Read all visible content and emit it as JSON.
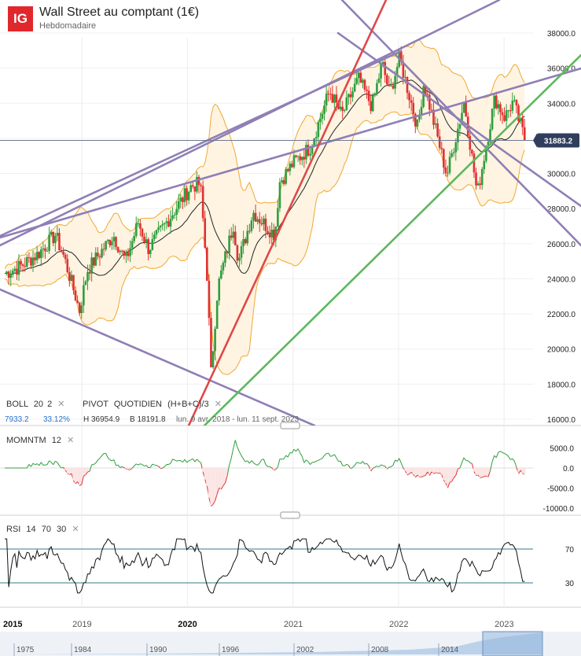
{
  "header": {
    "logo": "IG",
    "title": "Wall Street au comptant (1€)",
    "subtitle": "Hebdomadaire"
  },
  "main_panel": {
    "indicator_boll": {
      "name": "BOLL",
      "p1": "20",
      "p2": "2"
    },
    "indicator_pivot": {
      "name": "PIVOT",
      "p1": "QUOTIDIEN",
      "p2": "(H+B+C)/3"
    },
    "stats": {
      "width": "7933.2",
      "pct": "33.12%",
      "high": "H 36954.9",
      "low": "B 18191.8",
      "range": "lun. 9 avr. 2018 - lun. 11 sept. 2023"
    },
    "last_price": "31883.2"
  },
  "momentum_panel": {
    "name": "MOMNTM",
    "p1": "12"
  },
  "rsi_panel": {
    "name": "RSI",
    "p1": "14",
    "p2": "70",
    "p3": "30"
  },
  "navigator": {
    "years": [
      "1975",
      "1984",
      "1990",
      "1996",
      "2002",
      "2008",
      "2014"
    ]
  },
  "colors": {
    "up": "#2e9e3e",
    "down": "#e03131",
    "band": "#f0a830",
    "trend_purple": "#8f7fb5",
    "trend_red": "#e04848",
    "trend_green": "#5cb85c",
    "price_tag": "#2f3e5c"
  },
  "chart_data": [
    {
      "type": "candlestick",
      "title": "Wall Street au comptant (1€)",
      "y_ticks": [
        16000,
        18000,
        20000,
        22000,
        24000,
        26000,
        28000,
        30000,
        32000,
        34000,
        36000,
        38000
      ],
      "ylim": [
        15500,
        39500
      ],
      "x_ticks": [
        "2015",
        "2019",
        "2020",
        "2021",
        "2022",
        "2023"
      ],
      "last_value": 31883.2,
      "close_path": [
        [
          "2018-04-09",
          24300
        ],
        [
          "2018-06-01",
          24700
        ],
        [
          "2018-08-01",
          25400
        ],
        [
          "2018-10-01",
          26500
        ],
        [
          "2018-11-01",
          25200
        ],
        [
          "2018-12-24",
          22200
        ],
        [
          "2019-01-20",
          24500
        ],
        [
          "2019-04-20",
          26500
        ],
        [
          "2019-06-01",
          25000
        ],
        [
          "2019-07-15",
          27200
        ],
        [
          "2019-08-20",
          25700
        ],
        [
          "2019-11-01",
          27500
        ],
        [
          "2020-01-15",
          29300
        ],
        [
          "2020-02-15",
          29400
        ],
        [
          "2020-03-10",
          24000
        ],
        [
          "2020-03-23",
          18600
        ],
        [
          "2020-04-15",
          23500
        ],
        [
          "2020-06-08",
          27100
        ],
        [
          "2020-06-26",
          25000
        ],
        [
          "2020-08-15",
          27800
        ],
        [
          "2020-10-30",
          26500
        ],
        [
          "2020-11-15",
          29500
        ],
        [
          "2021-01-01",
          30600
        ],
        [
          "2021-03-01",
          31500
        ],
        [
          "2021-05-07",
          34700
        ],
        [
          "2021-06-18",
          33300
        ],
        [
          "2021-08-15",
          35400
        ],
        [
          "2021-10-01",
          33800
        ],
        [
          "2021-11-05",
          36300
        ],
        [
          "2021-12-01",
          34500
        ],
        [
          "2022-01-04",
          36600
        ],
        [
          "2022-03-08",
          32600
        ],
        [
          "2022-03-29",
          35200
        ],
        [
          "2022-06-17",
          29900
        ],
        [
          "2022-08-16",
          34100
        ],
        [
          "2022-09-30",
          28800
        ],
        [
          "2022-11-30",
          34300
        ],
        [
          "2023-01-03",
          33200
        ],
        [
          "2023-02-01",
          34100
        ],
        [
          "2023-03-15",
          31883
        ]
      ]
    },
    {
      "type": "line",
      "title": "MOMNTM 12",
      "y_ticks": [
        5000,
        0,
        -5000,
        -10000
      ],
      "ylim": [
        -10500,
        7000
      ]
    },
    {
      "type": "line",
      "title": "RSI 14 70 30",
      "y_ticks": [
        70,
        30
      ],
      "ylim": [
        15,
        85
      ]
    }
  ]
}
